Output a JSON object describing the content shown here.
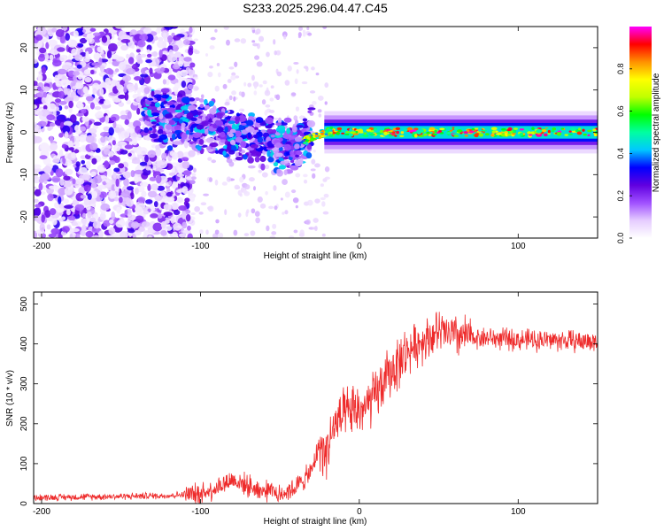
{
  "title": "S233.2025.296.04.47.C45",
  "colors": {
    "red_series": "#ee2a2a",
    "frame": "#000000",
    "sparse_purple": "#8a2be2"
  },
  "chart_data": [
    {
      "type": "heatmap",
      "name": "spectrogram",
      "xlabel": "Height of straight line (km)",
      "ylabel": "Frequency (Hz)",
      "xlim": [
        -205,
        150
      ],
      "ylim": [
        -25,
        25
      ],
      "xticks": [
        -200,
        -100,
        0,
        100
      ],
      "yticks": [
        -20,
        -10,
        0,
        10,
        20
      ],
      "xtick_labels": [
        "-200",
        "-100",
        "0",
        "100"
      ],
      "ytick_labels": [
        "-20",
        "-10",
        "0",
        "10",
        "20"
      ],
      "colorbar": {
        "label": "Normalized spectral amplitude",
        "range": [
          0,
          1
        ],
        "ticks": [
          0,
          0.2,
          0.4,
          0.6,
          0.8
        ],
        "tick_labels": [
          "0.0",
          "0.2",
          "0.4",
          "0.6",
          "0.8"
        ],
        "colormap": [
          "#ffffff",
          "#e5ccff",
          "#a050ff",
          "#6000e0",
          "#0000ff",
          "#00c8ff",
          "#00ffa0",
          "#00ff00",
          "#c0ff00",
          "#ffff00",
          "#ff9000",
          "#ff0000",
          "#ff00ff"
        ]
      },
      "regions": {
        "noise_x": [
          -205,
          -105
        ],
        "transition_x": [
          -135,
          -30
        ],
        "signal_x": [
          -30,
          150
        ],
        "signal_center_hz": 0,
        "signal_halfwidth_hz": 3
      }
    },
    {
      "type": "line",
      "name": "snr",
      "xlabel": "Height of straight line (km)",
      "ylabel": "SNR (10 * v/v)",
      "xlim": [
        -205,
        150
      ],
      "ylim": [
        0,
        530
      ],
      "xticks": [
        -200,
        -100,
        0,
        100
      ],
      "yticks": [
        0,
        100,
        200,
        300,
        400,
        500
      ],
      "xtick_labels": [
        "-200",
        "-100",
        "0",
        "100"
      ],
      "ytick_labels": [
        "0",
        "100",
        "200",
        "300",
        "400",
        "500"
      ],
      "trend_x": [
        -205,
        -120,
        -100,
        -90,
        -80,
        -70,
        -60,
        -50,
        -40,
        -30,
        -25,
        -22,
        -15,
        -5,
        5,
        10,
        20,
        30,
        40,
        50,
        60,
        80,
        100,
        120,
        150
      ],
      "trend_y": [
        15,
        20,
        25,
        40,
        60,
        45,
        30,
        25,
        40,
        80,
        150,
        120,
        200,
        230,
        240,
        270,
        330,
        380,
        410,
        430,
        420,
        415,
        410,
        410,
        405
      ]
    }
  ]
}
